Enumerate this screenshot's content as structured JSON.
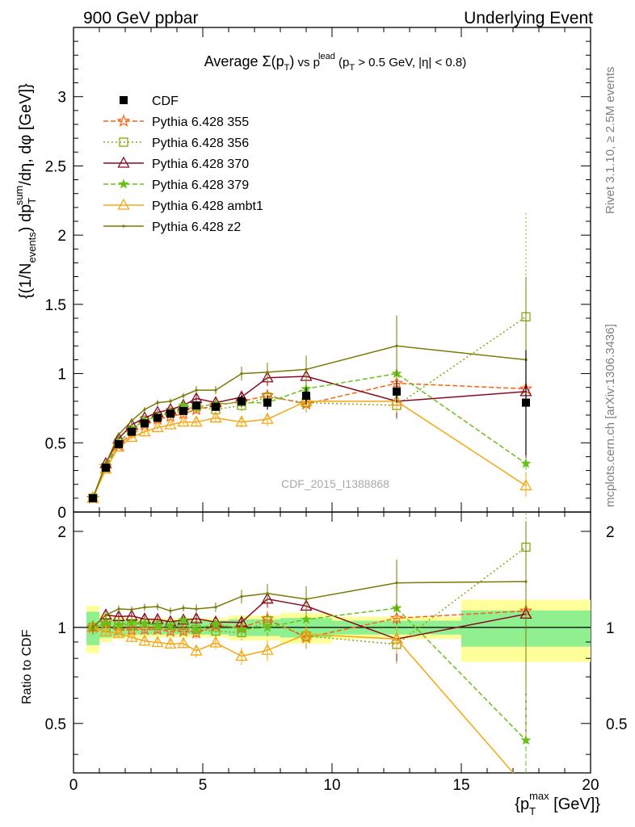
{
  "header": {
    "left": "900 GeV ppbar",
    "right": "Underlying Event"
  },
  "side_labels": {
    "rivet": "Rivet 3.1.10, ≥ 2.5M events",
    "mcplots": "mcplots.cern.ch [arXiv:1306.3436]"
  },
  "chart_data": {
    "type": "line",
    "title": "Average Σ(pT) vs pT^lead (pT > 0.5 GeV, |η| < 0.8)",
    "title_parts": {
      "main": "Average ",
      "sigma": "Σ(p",
      "sub_t": "T",
      "close": ")",
      "vs": " vs p",
      "sup_lead": "lead",
      "cut": " (p",
      "cut_rest": " > 0.5 GeV, |η| < 0.8)"
    },
    "watermark": "CDF_2015_I1388868",
    "ylabel": "{(1/N_events) dp_T^sum/dη, dφ [GeV]}",
    "ylabel_parts": {
      "open": "{(1/N",
      "events": "events",
      "mid": ") dp",
      "sum": "sum",
      "rest": "/dη, dφ [GeV]}"
    },
    "xlabel": "{pT^max [GeV]}",
    "xlabel_parts": {
      "open": "{p",
      "max": "max",
      "rest": " [GeV]}"
    },
    "ratio_ylabel": "Ratio to CDF",
    "xlim": [
      0,
      20
    ],
    "ylim": [
      0,
      3.5
    ],
    "ratio_ylim": [
      0.35,
      2.3
    ],
    "x_ticks": [
      "0",
      "5",
      "10",
      "15",
      "20"
    ],
    "y_ticks": [
      "0",
      "0.5",
      "1",
      "1.5",
      "2",
      "2.5",
      "3"
    ],
    "ratio_ticks": [
      "0.5",
      "1",
      "2"
    ],
    "legend_position": "top-left",
    "x": [
      0.75,
      1.25,
      1.75,
      2.25,
      2.75,
      3.25,
      3.75,
      4.25,
      4.75,
      5.5,
      6.5,
      7.5,
      9.0,
      12.5,
      17.5
    ],
    "data": {
      "name": "CDF",
      "values": [
        0.1,
        0.32,
        0.49,
        0.58,
        0.64,
        0.68,
        0.71,
        0.73,
        0.77,
        0.76,
        0.8,
        0.79,
        0.84,
        0.87,
        0.79
      ],
      "errors": [
        0.005,
        0.01,
        0.015,
        0.015,
        0.02,
        0.02,
        0.02,
        0.02,
        0.03,
        0.03,
        0.04,
        0.05,
        0.06,
        0.08,
        0.38
      ],
      "ratio_band_inner": [
        0.12,
        0.07,
        0.06,
        0.05,
        0.05,
        0.05,
        0.05,
        0.05,
        0.05,
        0.05,
        0.06,
        0.06,
        0.07,
        0.05,
        0.13
      ],
      "ratio_band_outer": [
        0.17,
        0.1,
        0.08,
        0.07,
        0.07,
        0.07,
        0.07,
        0.07,
        0.07,
        0.07,
        0.09,
        0.09,
        0.11,
        0.08,
        0.22
      ],
      "bin_edges": [
        0.5,
        1.0,
        1.5,
        2.0,
        2.5,
        3.0,
        3.5,
        4.0,
        4.5,
        5.0,
        6.0,
        7.0,
        8.0,
        10.0,
        15.0,
        20.0
      ],
      "color": "#000000"
    },
    "series": [
      {
        "name": "Pythia 6.428 355",
        "color": "#ff5f14",
        "dash": "6,3",
        "marker": "star-open",
        "values": [
          0.1,
          0.33,
          0.48,
          0.57,
          0.63,
          0.67,
          0.69,
          0.71,
          0.74,
          0.77,
          0.8,
          0.84,
          0.78,
          0.93,
          0.89
        ],
        "errors": [
          0.005,
          0.01,
          0.015,
          0.015,
          0.02,
          0.02,
          0.02,
          0.02,
          0.03,
          0.03,
          0.04,
          0.05,
          0.06,
          0.09,
          0.5
        ]
      },
      {
        "name": "Pythia 6.428 356",
        "color": "#8aa60e",
        "dash": "2,3",
        "marker": "square-open",
        "values": [
          0.1,
          0.32,
          0.5,
          0.59,
          0.66,
          0.69,
          0.72,
          0.74,
          0.76,
          0.74,
          0.77,
          0.83,
          0.79,
          0.77,
          1.41
        ],
        "errors": [
          0.005,
          0.01,
          0.015,
          0.015,
          0.02,
          0.02,
          0.02,
          0.02,
          0.03,
          0.03,
          0.04,
          0.05,
          0.06,
          0.1,
          0.75
        ]
      },
      {
        "name": "Pythia 6.428 370",
        "color": "#8b0a23",
        "dash": "",
        "marker": "triangle-open",
        "values": [
          0.1,
          0.35,
          0.53,
          0.63,
          0.68,
          0.72,
          0.74,
          0.77,
          0.82,
          0.79,
          0.83,
          0.97,
          0.98,
          0.8,
          0.87
        ],
        "errors": [
          0.005,
          0.01,
          0.015,
          0.015,
          0.02,
          0.02,
          0.02,
          0.02,
          0.03,
          0.03,
          0.04,
          0.06,
          0.07,
          0.12,
          0.5
        ]
      },
      {
        "name": "Pythia 6.428 379",
        "color": "#68c018",
        "dash": "6,3",
        "marker": "star",
        "values": [
          0.1,
          0.33,
          0.5,
          0.6,
          0.66,
          0.69,
          0.72,
          0.77,
          0.76,
          0.78,
          0.79,
          0.79,
          0.89,
          1.0,
          0.35
        ],
        "errors": [
          0.005,
          0.01,
          0.015,
          0.015,
          0.02,
          0.02,
          0.02,
          0.02,
          0.03,
          0.03,
          0.04,
          0.05,
          0.06,
          0.14,
          0.15
        ]
      },
      {
        "name": "Pythia 6.428 ambt1",
        "color": "#f5a712",
        "dash": "",
        "marker": "triangle-open",
        "values": [
          0.1,
          0.31,
          0.47,
          0.54,
          0.58,
          0.61,
          0.63,
          0.65,
          0.65,
          0.68,
          0.65,
          0.67,
          0.8,
          0.8,
          0.19
        ],
        "errors": [
          0.005,
          0.01,
          0.015,
          0.015,
          0.02,
          0.02,
          0.02,
          0.02,
          0.03,
          0.03,
          0.04,
          0.05,
          0.06,
          0.08,
          0.08
        ]
      },
      {
        "name": "Pythia 6.428 z2",
        "color": "#787b06",
        "dash": "",
        "marker": "dot",
        "values": [
          0.1,
          0.35,
          0.56,
          0.66,
          0.74,
          0.79,
          0.8,
          0.84,
          0.88,
          0.88,
          1.0,
          1.01,
          1.03,
          1.2,
          1.1
        ],
        "errors": [
          0.005,
          0.01,
          0.015,
          0.015,
          0.02,
          0.02,
          0.02,
          0.02,
          0.03,
          0.03,
          0.05,
          0.07,
          0.1,
          0.22,
          0.6
        ]
      }
    ]
  }
}
